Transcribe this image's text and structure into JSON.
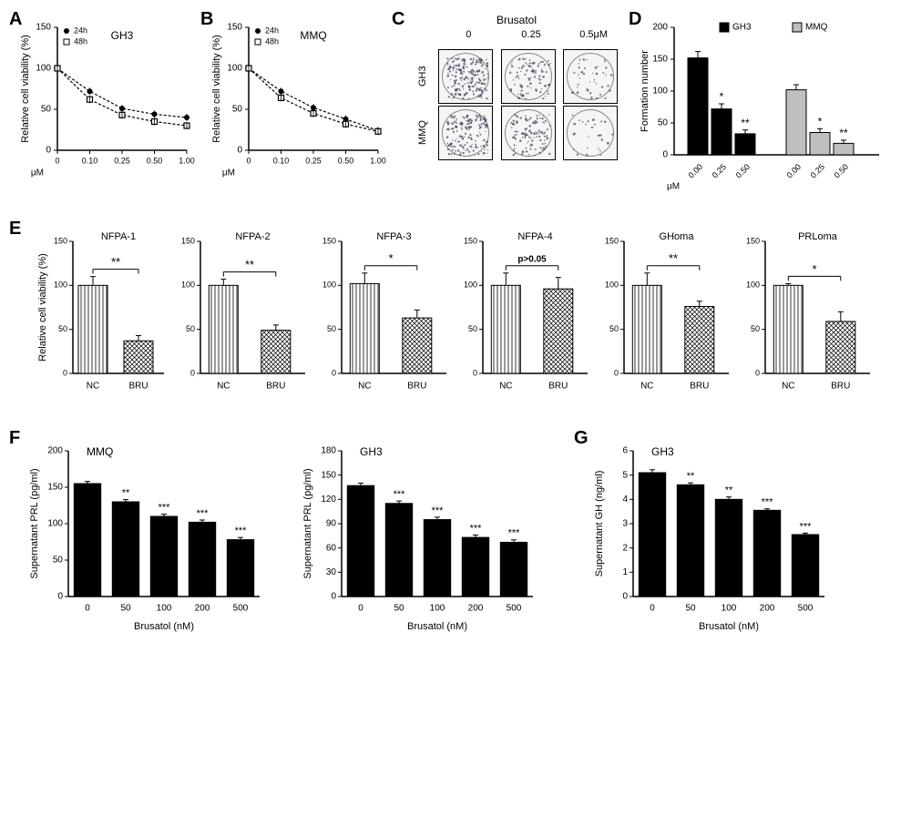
{
  "panelA": {
    "label": "A",
    "title": "GH3",
    "ylabel": "Relative cell viability (%)",
    "xlabel": "μM",
    "xticks": [
      "0",
      "0.10",
      "0.25",
      "0.50",
      "1.00"
    ],
    "yticks": [
      0,
      50,
      100,
      150
    ],
    "ylim": [
      0,
      150
    ],
    "series24h": {
      "label": "24h",
      "marker": "circle",
      "values": [
        100,
        72,
        51,
        44,
        40
      ]
    },
    "series48h": {
      "label": "48h",
      "marker": "square",
      "values": [
        100,
        62,
        43,
        35,
        30
      ]
    },
    "line_color": "#000000",
    "dash": "3,2"
  },
  "panelB": {
    "label": "B",
    "title": "MMQ",
    "ylabel": "Relative cell viability (%)",
    "xlabel": "μM",
    "xticks": [
      "0",
      "0.10",
      "0.25",
      "0.50",
      "1.00"
    ],
    "yticks": [
      0,
      50,
      100,
      150
    ],
    "ylim": [
      0,
      150
    ],
    "series24h": {
      "label": "24h",
      "marker": "circle",
      "values": [
        100,
        72,
        52,
        38,
        24
      ]
    },
    "series48h": {
      "label": "48h",
      "marker": "square",
      "values": [
        100,
        64,
        45,
        32,
        23
      ]
    },
    "line_color": "#000000",
    "dash": "3,2"
  },
  "panelC": {
    "label": "C",
    "title": "Brusatol",
    "col_labels": [
      "0",
      "0.25",
      "0.5μM"
    ],
    "row_labels": [
      "GH3",
      "MMQ"
    ],
    "density": [
      [
        180,
        90,
        40
      ],
      [
        150,
        110,
        30
      ]
    ]
  },
  "panelD": {
    "label": "D",
    "ylabel": "Formation number",
    "yticks": [
      0,
      50,
      100,
      150,
      200
    ],
    "ylim": [
      0,
      200
    ],
    "xlabel": "μM",
    "groups": [
      {
        "label": "GH3",
        "color": "#000000",
        "xticks": [
          "0.00",
          "0.25",
          "0.50"
        ],
        "values": [
          152,
          72,
          33
        ],
        "errors": [
          10,
          8,
          6
        ],
        "sig": [
          "",
          "*",
          "**"
        ]
      },
      {
        "label": "MMQ",
        "color": "#bfbfbf",
        "xticks": [
          "0.00",
          "0.25",
          "0.50"
        ],
        "values": [
          102,
          35,
          18
        ],
        "errors": [
          8,
          6,
          5
        ],
        "sig": [
          "",
          "*",
          "**"
        ]
      }
    ]
  },
  "panelE": {
    "label": "E",
    "ylabel": "Relative cell viability (%)",
    "yticks": [
      0,
      50,
      100,
      150
    ],
    "ylim": [
      0,
      150
    ],
    "xticks": [
      "NC",
      "BRU"
    ],
    "nc_pattern": "vertical",
    "bru_pattern": "cross",
    "charts": [
      {
        "title": "NFPA-1",
        "sig": "**",
        "nc": 100,
        "nc_err": 10,
        "bru": 37,
        "bru_err": 6
      },
      {
        "title": "NFPA-2",
        "sig": "**",
        "nc": 100,
        "nc_err": 7,
        "bru": 49,
        "bru_err": 6
      },
      {
        "title": "NFPA-3",
        "sig": "*",
        "nc": 102,
        "nc_err": 12,
        "bru": 63,
        "bru_err": 9
      },
      {
        "title": "NFPA-4",
        "sig": "p>0.05",
        "nc": 100,
        "nc_err": 14,
        "bru": 96,
        "bru_err": 13
      },
      {
        "title": "GHoma",
        "sig": "**",
        "nc": 100,
        "nc_err": 14,
        "bru": 76,
        "bru_err": 6
      },
      {
        "title": "PRLoma",
        "sig": "*",
        "nc": 100,
        "nc_err": 2,
        "bru": 59,
        "bru_err": 11
      }
    ]
  },
  "panelF": {
    "label": "F",
    "xlabel": "Brusatol (nM)",
    "xticks": [
      "0",
      "50",
      "100",
      "200",
      "500"
    ],
    "bar_color": "#000000",
    "charts": [
      {
        "title": "MMQ",
        "ylabel": "Supernatant PRL (pg/ml)",
        "yticks": [
          0,
          50,
          100,
          150,
          200
        ],
        "ylim": [
          0,
          200
        ],
        "values": [
          155,
          130,
          110,
          102,
          78
        ],
        "errors": [
          3,
          3,
          3,
          3,
          3
        ],
        "sig": [
          "",
          "**",
          "***",
          "***",
          "***"
        ]
      },
      {
        "title": "GH3",
        "ylabel": "Supernatant PRL (pg/ml)",
        "yticks": [
          0,
          30,
          60,
          90,
          120,
          150,
          180
        ],
        "ylim": [
          0,
          180
        ],
        "values": [
          137,
          115,
          95,
          73,
          67
        ],
        "errors": [
          3,
          3,
          3,
          3,
          3
        ],
        "sig": [
          "",
          "***",
          "***",
          "***",
          "***"
        ]
      }
    ]
  },
  "panelG": {
    "label": "G",
    "xlabel": "Brusatol (nM)",
    "xticks": [
      "0",
      "50",
      "100",
      "200",
      "500"
    ],
    "bar_color": "#000000",
    "chart": {
      "title": "GH3",
      "ylabel": "Supernatant GH (ng/ml)",
      "yticks": [
        0,
        1,
        2,
        3,
        4,
        5,
        6
      ],
      "ylim": [
        0,
        6
      ],
      "values": [
        5.1,
        4.6,
        4.0,
        3.55,
        2.55
      ],
      "errors": [
        0.12,
        0.08,
        0.1,
        0.06,
        0.06
      ],
      "sig": [
        "",
        "**",
        "**",
        "***",
        "***"
      ]
    }
  },
  "style": {
    "axis_color": "#000000",
    "font_size_label": 12,
    "font_size_tick": 10,
    "font_size_title": 12,
    "font_size_panel": 20
  }
}
